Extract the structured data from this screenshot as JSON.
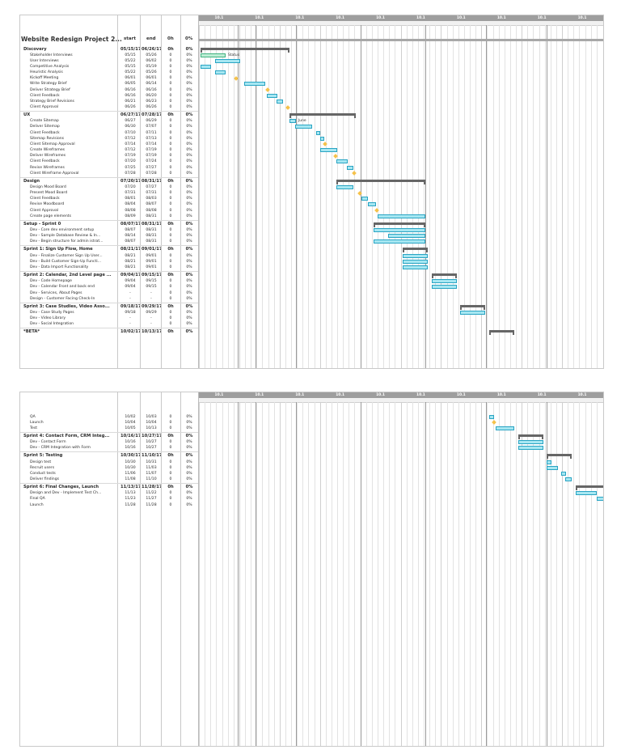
{
  "project_title": "Website Redesign Project 2...",
  "columns": {
    "start": "start",
    "end": "end",
    "work": "0h",
    "pct": "0%"
  },
  "timeline_months": [
    "10.1",
    "10.1",
    "10.1",
    "10.1",
    "10.1",
    "10.1",
    "10.1",
    "10.1",
    "10.1",
    "10.1"
  ],
  "page1_rows": [
    {
      "name": "Discovery",
      "start": "05/15/17",
      "end": "06/26/17",
      "work": "0h",
      "pct": "0%",
      "group": true
    },
    {
      "name": "Stakeholder Interviews",
      "start": "05/15",
      "end": "05/26",
      "work": "0",
      "pct": "0%"
    },
    {
      "name": "User Interviews",
      "start": "05/22",
      "end": "06/02",
      "work": "0",
      "pct": "0%"
    },
    {
      "name": "Competitive Analysis",
      "start": "05/15",
      "end": "05/19",
      "work": "0",
      "pct": "0%"
    },
    {
      "name": "Heuristic Analysis",
      "start": "05/22",
      "end": "05/26",
      "work": "0",
      "pct": "0%"
    },
    {
      "name": "Kickoff Meeting",
      "start": "06/01",
      "end": "06/01",
      "work": "0",
      "pct": "0%"
    },
    {
      "name": "Write Strategy Brief",
      "start": "06/05",
      "end": "06/14",
      "work": "0",
      "pct": "0%"
    },
    {
      "name": "Deliver Strategy Brief",
      "start": "06/16",
      "end": "06/16",
      "work": "0",
      "pct": "0%"
    },
    {
      "name": "Client Feedback",
      "start": "06/16",
      "end": "06/20",
      "work": "0",
      "pct": "0%"
    },
    {
      "name": "Strategy Brief Revisions",
      "start": "06/21",
      "end": "06/23",
      "work": "0",
      "pct": "0%"
    },
    {
      "name": "Client Approval",
      "start": "06/26",
      "end": "06/26",
      "work": "0",
      "pct": "0%"
    },
    {
      "name": "UX",
      "start": "06/27/17",
      "end": "07/28/17",
      "work": "0h",
      "pct": "0%",
      "group": true
    },
    {
      "name": "Create Sitemap",
      "start": "06/27",
      "end": "06/29",
      "work": "0",
      "pct": "0%"
    },
    {
      "name": "Deliver Sitemap",
      "start": "06/30",
      "end": "07/07",
      "work": "0",
      "pct": "0%"
    },
    {
      "name": "Client Feedback",
      "start": "07/10",
      "end": "07/11",
      "work": "0",
      "pct": "0%"
    },
    {
      "name": "Sitemap Revisions",
      "start": "07/12",
      "end": "07/13",
      "work": "0",
      "pct": "0%"
    },
    {
      "name": "Client Sitemap Approval",
      "start": "07/14",
      "end": "07/14",
      "work": "0",
      "pct": "0%"
    },
    {
      "name": "Create Wireframes",
      "start": "07/12",
      "end": "07/19",
      "work": "0",
      "pct": "0%"
    },
    {
      "name": "Deliver Wireframes",
      "start": "07/19",
      "end": "07/19",
      "work": "0",
      "pct": "0%"
    },
    {
      "name": "Client Feedback",
      "start": "07/20",
      "end": "07/24",
      "work": "0",
      "pct": "0%"
    },
    {
      "name": "Revise Wireframes",
      "start": "07/25",
      "end": "07/27",
      "work": "0",
      "pct": "0%"
    },
    {
      "name": "Client Wireframe Approval",
      "start": "07/28",
      "end": "07/28",
      "work": "0",
      "pct": "0%"
    },
    {
      "name": "Design",
      "start": "07/20/17",
      "end": "08/31/17",
      "work": "0h",
      "pct": "0%",
      "group": true
    },
    {
      "name": "Design Mood Board",
      "start": "07/20",
      "end": "07/27",
      "work": "0",
      "pct": "0%"
    },
    {
      "name": "Present Mood Board",
      "start": "07/31",
      "end": "07/31",
      "work": "0",
      "pct": "0%"
    },
    {
      "name": "Client Feedback",
      "start": "08/01",
      "end": "08/03",
      "work": "0",
      "pct": "0%"
    },
    {
      "name": "Revise Moodboard",
      "start": "08/04",
      "end": "08/07",
      "work": "0",
      "pct": "0%"
    },
    {
      "name": "Client Approval",
      "start": "08/08",
      "end": "08/08",
      "work": "0",
      "pct": "0%"
    },
    {
      "name": "Create page elements",
      "start": "08/09",
      "end": "08/31",
      "work": "0",
      "pct": "0%"
    },
    {
      "name": "Setup - Sprint 0",
      "start": "08/07/17",
      "end": "08/31/17",
      "work": "0h",
      "pct": "0%",
      "group": true
    },
    {
      "name": "Dev - Core dev environment setup",
      "start": "08/07",
      "end": "08/31",
      "work": "0",
      "pct": "0%"
    },
    {
      "name": "Dev - Sample Database Review & In...",
      "start": "08/14",
      "end": "08/31",
      "work": "0",
      "pct": "0%"
    },
    {
      "name": "Dev - Begin structure for admin istrat...",
      "start": "08/07",
      "end": "08/31",
      "work": "0",
      "pct": "0%"
    },
    {
      "name": "Sprint 1: Sign Up Flow, Home",
      "start": "08/21/17",
      "end": "09/01/17",
      "work": "0h",
      "pct": "0%",
      "group": true
    },
    {
      "name": "Dev - Finalize Customer Sign Up User...",
      "start": "08/21",
      "end": "09/01",
      "work": "0",
      "pct": "0%"
    },
    {
      "name": "Dev - Build Customer Sign-Up Functi...",
      "start": "08/21",
      "end": "09/01",
      "work": "0",
      "pct": "0%"
    },
    {
      "name": "Dev - Data Import Functionality",
      "start": "08/21",
      "end": "09/01",
      "work": "0",
      "pct": "0%"
    },
    {
      "name": "Sprint 2: Calendar, 2nd Level page ...",
      "start": "09/04/17",
      "end": "09/15/17",
      "work": "0h",
      "pct": "0%",
      "group": true
    },
    {
      "name": "Dev - Code Homepage",
      "start": "09/04",
      "end": "09/15",
      "work": "0",
      "pct": "0%"
    },
    {
      "name": "Dev - Calendar Front and back end",
      "start": "09/04",
      "end": "09/15",
      "work": "0",
      "pct": "0%"
    },
    {
      "name": "Dev - Services, About Pages",
      "start": "-",
      "end": "-",
      "work": "0",
      "pct": "0%"
    },
    {
      "name": "Design - Customer Facing Check-In",
      "start": "-",
      "end": "-",
      "work": "0",
      "pct": "0%"
    },
    {
      "name": "Sprint 3: Case Studies, Video Asso...",
      "start": "09/18/17",
      "end": "09/29/17",
      "work": "0h",
      "pct": "0%",
      "group": true
    },
    {
      "name": "Dev - Case Study Pages",
      "start": "09/18",
      "end": "09/29",
      "work": "0",
      "pct": "0%"
    },
    {
      "name": "Dev - Video Library",
      "start": "-",
      "end": "-",
      "work": "0",
      "pct": "0%"
    },
    {
      "name": "Dev - Social Integration",
      "start": "-",
      "end": "-",
      "work": "0",
      "pct": "0%"
    },
    {
      "name": "*BETA*",
      "start": "10/02/17",
      "end": "10/13/17",
      "work": "0h",
      "pct": "0%",
      "group": true
    }
  ],
  "page2_rows": [
    {
      "name": "QA",
      "start": "10/02",
      "end": "10/03",
      "work": "0",
      "pct": "0%"
    },
    {
      "name": "Launch",
      "start": "10/04",
      "end": "10/04",
      "work": "0",
      "pct": "0%"
    },
    {
      "name": "Test",
      "start": "10/05",
      "end": "10/13",
      "work": "0",
      "pct": "0%"
    },
    {
      "name": "Sprint 4: Contact Form, CRM Integ...",
      "start": "10/16/17",
      "end": "10/27/17",
      "work": "0h",
      "pct": "0%",
      "group": true
    },
    {
      "name": "Dev - Contact Form",
      "start": "10/16",
      "end": "10/27",
      "work": "0",
      "pct": "0%"
    },
    {
      "name": "Dev - CRM Integration with Form",
      "start": "10/16",
      "end": "10/27",
      "work": "0",
      "pct": "0%"
    },
    {
      "name": "Sprint 5: Testing",
      "start": "10/30/17",
      "end": "11/10/17",
      "work": "0h",
      "pct": "0%",
      "group": true
    },
    {
      "name": "Design test",
      "start": "10/30",
      "end": "10/31",
      "work": "0",
      "pct": "0%"
    },
    {
      "name": "Recruit users",
      "start": "10/30",
      "end": "11/03",
      "work": "0",
      "pct": "0%"
    },
    {
      "name": "Conduct tests",
      "start": "11/06",
      "end": "11/07",
      "work": "0",
      "pct": "0%"
    },
    {
      "name": "Deliver findings",
      "start": "11/08",
      "end": "11/10",
      "work": "0",
      "pct": "0%"
    },
    {
      "name": "Sprint 6: Final Changes, Launch",
      "start": "11/13/17",
      "end": "11/28/17",
      "work": "0h",
      "pct": "0%",
      "group": true
    },
    {
      "name": "Design and Dev - Implement Test Ch...",
      "start": "11/13",
      "end": "11/22",
      "work": "0",
      "pct": "0%"
    },
    {
      "name": "Final QA",
      "start": "11/23",
      "end": "11/27",
      "work": "0",
      "pct": "0%"
    },
    {
      "name": "Launch",
      "start": "11/28",
      "end": "11/28",
      "work": "0",
      "pct": "0%"
    }
  ],
  "bar_labels": {
    "status": "Status",
    "june": "June"
  },
  "colors": {
    "task": "#a7e7f2",
    "task_border": "#29a4c3",
    "summary": "#666666",
    "milestone": "#f5c24a",
    "status": "#bfeed6"
  },
  "timeline_start": "05/15/17",
  "timeline_end": "11/28/17"
}
